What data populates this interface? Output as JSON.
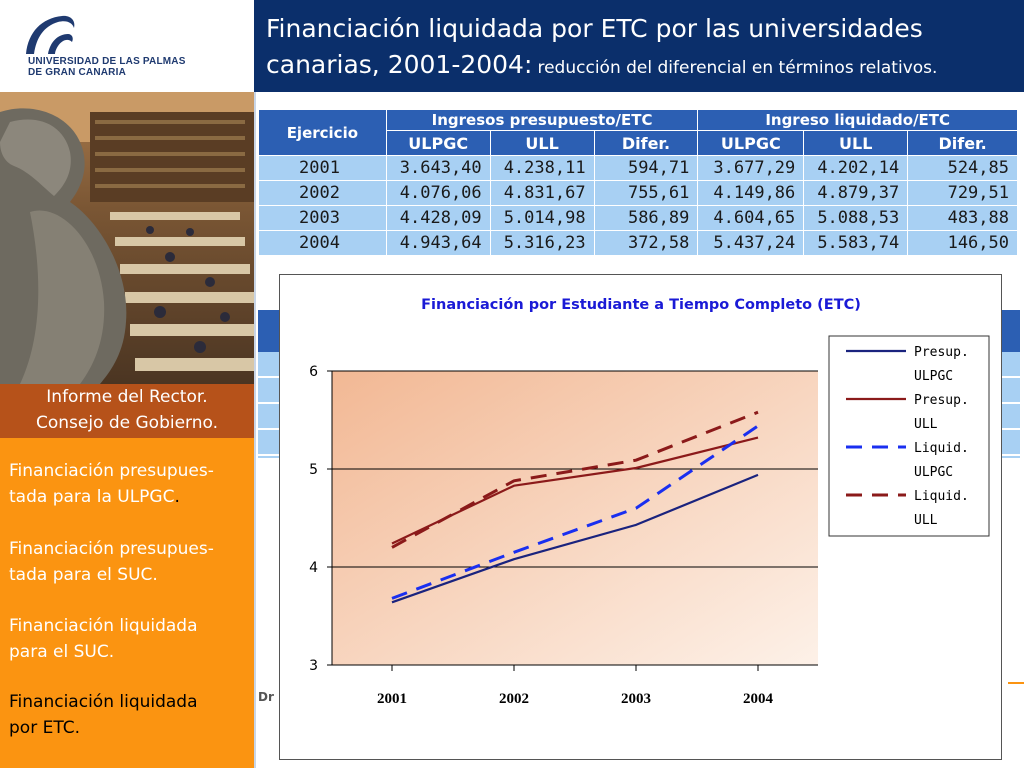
{
  "logo": {
    "line1": "UNIVERSIDAD DE LAS PALMAS",
    "line2": "DE GRAN CANARIA"
  },
  "header": {
    "title_line1": "Financiación liquidada por ETC por las universidades",
    "title_line2_main": "canarias, 2001-2004:",
    "title_line2_sub": "reducción del diferencial en términos relativos."
  },
  "info_box": {
    "line1": "Informe del Rector.",
    "line2": "Consejo de Gobierno."
  },
  "nav": {
    "items": [
      {
        "line1": "Financiación presupues-",
        "line2": "tada para la ULPGC",
        "dot": "."
      },
      {
        "line1": "Financiación presupues-",
        "line2": "tada para el SUC.",
        "dot": ""
      },
      {
        "line1": "Financiación liquidada",
        "line2": "para el SUC.",
        "dot": ""
      },
      {
        "line1": "Financiación liquidada",
        "line2": "por ETC.",
        "dot": ""
      }
    ]
  },
  "table": {
    "col_ejercicio": "Ejercicio",
    "group1": "Ingresos presupuesto/ETC",
    "group2": "Ingreso liquidado/ETC",
    "subheaders": [
      "ULPGC",
      "ULL",
      "Difer.",
      "ULPGC",
      "ULL",
      "Difer."
    ],
    "rows": [
      [
        "2001",
        "3.643,40",
        "4.238,11",
        "594,71",
        "3.677,29",
        "4.202,14",
        "524,85"
      ],
      [
        "2002",
        "4.076,06",
        "4.831,67",
        "755,61",
        "4.149,86",
        "4.879,37",
        "729,51"
      ],
      [
        "2003",
        "4.428,09",
        "5.014,98",
        "586,89",
        "4.604,65",
        "5.088,53",
        "483,88"
      ],
      [
        "2004",
        "4.943,64",
        "5.316,23",
        "372,58",
        "5.437,24",
        "5.583,74",
        "146,50"
      ]
    ]
  },
  "footer_fragment": "Dr",
  "chart_data": {
    "type": "line",
    "title": "Financiación por Estudiante a Tiempo Completo (ETC)",
    "xlabel": "",
    "ylabel": "",
    "x": [
      "2001",
      "2002",
      "2003",
      "2004"
    ],
    "ylim": [
      3,
      6
    ],
    "yticks": [
      "3",
      "4",
      "5",
      "6"
    ],
    "grid": true,
    "legend_position": "right",
    "series": [
      {
        "name_line1": "Presup.",
        "name_line2": "ULPGC",
        "values": [
          3.64,
          4.08,
          4.43,
          4.94
        ],
        "color": "#1a237e",
        "dash": "solid"
      },
      {
        "name_line1": "Presup.",
        "name_line2": "ULL",
        "values": [
          4.24,
          4.83,
          5.01,
          5.32
        ],
        "color": "#8b1a1a",
        "dash": "solid"
      },
      {
        "name_line1": "Liquid.",
        "name_line2": "ULPGC",
        "values": [
          3.68,
          4.15,
          4.6,
          5.44
        ],
        "color": "#1a2ff0",
        "dash": "dashed"
      },
      {
        "name_line1": "Liquid.",
        "name_line2": "ULL",
        "values": [
          4.2,
          4.88,
          5.09,
          5.58
        ],
        "color": "#8b1a1a",
        "dash": "dashed"
      }
    ]
  },
  "colors": {
    "header_bg": "#0b2f6b",
    "nav_bg": "#fb9411",
    "info_bg": "#b6521a",
    "table_header": "#2c5fb3",
    "table_cell": "#a8d0f3"
  }
}
